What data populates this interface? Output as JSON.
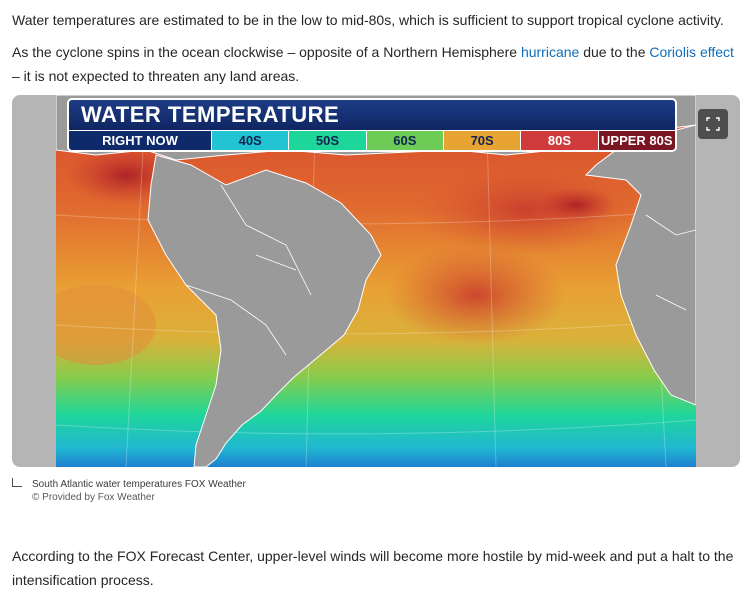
{
  "article": {
    "paragraph1": "Water temperatures are estimated to be in the low to mid-80s, which is sufficient to support tropical cyclone activity.",
    "paragraph2": {
      "before_link1": "As the cyclone spins in the ocean clockwise – opposite of a Northern Hemisphere ",
      "link1": "hurricane",
      "between_links": " due to the ",
      "link2": "Coriolis effect",
      "after_link2": " – it is not expected to threaten any land areas."
    },
    "paragraph3": "According to the FOX Forecast Center, upper-level winds will become more hostile by mid-week and put a halt to the intensification process."
  },
  "figure": {
    "title": "WATER TEMPERATURE",
    "scale_label": "RIGHT NOW",
    "scale": [
      {
        "label": "40S",
        "color": "#22c3d3",
        "text_color": "#10244f"
      },
      {
        "label": "50S",
        "color": "#1fd69a",
        "text_color": "#10244f"
      },
      {
        "label": "60S",
        "color": "#6ccc56",
        "text_color": "#10244f"
      },
      {
        "label": "70S",
        "color": "#e8a433",
        "text_color": "#10244f"
      },
      {
        "label": "80S",
        "color": "#cf3a3b",
        "text_color": "#ffffff"
      },
      {
        "label": "UPPER 80S",
        "color": "#7a1522",
        "text_color": "#ffffff"
      }
    ],
    "expand_icon": "expand-icon",
    "caption": "South Atlantic water temperatures FOX Weather",
    "credit": "© Provided by Fox Weather"
  },
  "colors": {
    "link": "#0f6cbd",
    "land": "#9a9a9a",
    "header_blue": "#102662"
  }
}
